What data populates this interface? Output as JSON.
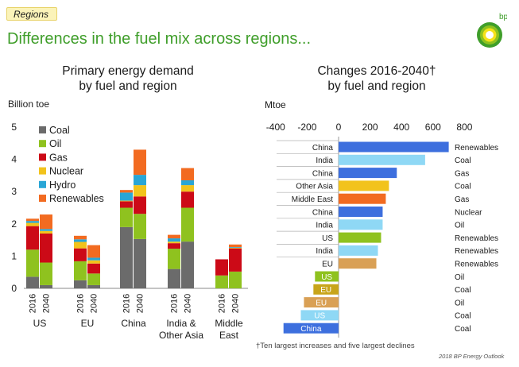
{
  "header": {
    "tag": "Regions",
    "title": "Differences in the fuel mix across regions...",
    "logo_text": "bp"
  },
  "left_chart": {
    "title_line1": "Primary energy demand",
    "title_line2": "by fuel and region",
    "unit": "Billion toe"
  },
  "right_chart": {
    "title_line1": "Changes 2016-2040†",
    "title_line2": "by fuel and region",
    "unit": "Mtoe"
  },
  "footnote": "†Ten largest increases and five largest declines",
  "source": "2018 BP Energy Outlook",
  "chart_data": [
    {
      "type": "bar",
      "stacked": true,
      "title": "Primary energy demand by fuel and region",
      "ylabel": "Billion toe",
      "ylim": [
        0,
        5
      ],
      "yticks": [
        0,
        1,
        2,
        3,
        4,
        5
      ],
      "grid": false,
      "legend": "top-left",
      "groups": [
        "US",
        "EU",
        "China",
        "India & Other Asia",
        "Middle East"
      ],
      "categories": [
        "2016",
        "2040"
      ],
      "series": [
        {
          "name": "Coal",
          "color": "#6b6b6b",
          "values": [
            [
              0.36,
              0.1
            ],
            [
              0.25,
              0.1
            ],
            [
              1.9,
              1.53
            ],
            [
              0.6,
              1.45
            ],
            [
              0,
              0
            ]
          ]
        },
        {
          "name": "Oil",
          "color": "#8fc21f",
          "values": [
            [
              0.84,
              0.7
            ],
            [
              0.59,
              0.36
            ],
            [
              0.6,
              0.78
            ],
            [
              0.63,
              1.05
            ],
            [
              0.4,
              0.52
            ]
          ]
        },
        {
          "name": "Gas",
          "color": "#cc0a17",
          "values": [
            [
              0.73,
              0.9
            ],
            [
              0.4,
              0.31
            ],
            [
              0.2,
              0.54
            ],
            [
              0.17,
              0.5
            ],
            [
              0.5,
              0.72
            ]
          ]
        },
        {
          "name": "Nuclear",
          "color": "#f2c31c",
          "values": [
            [
              0.1,
              0.08
            ],
            [
              0.2,
              0.1
            ],
            [
              0.02,
              0.35
            ],
            [
              0.05,
              0.2
            ],
            [
              0,
              0.02
            ]
          ]
        },
        {
          "name": "Hydro",
          "color": "#2aa6d6",
          "values": [
            [
              0.06,
              0.06
            ],
            [
              0.08,
              0.08
            ],
            [
              0.25,
              0.32
            ],
            [
              0.1,
              0.15
            ],
            [
              0,
              0.02
            ]
          ]
        },
        {
          "name": "Renewables",
          "color": "#f26b21",
          "values": [
            [
              0.07,
              0.45
            ],
            [
              0.11,
              0.39
            ],
            [
              0.08,
              0.78
            ],
            [
              0.11,
              0.38
            ],
            [
              0,
              0.08
            ]
          ]
        }
      ]
    },
    {
      "type": "bar",
      "orientation": "horizontal",
      "title": "Changes 2016-2040 by fuel and region",
      "xlabel": "Mtoe",
      "xlim": [
        -400,
        800
      ],
      "xticks": [
        -400,
        -200,
        0,
        200,
        400,
        600,
        800
      ],
      "categories": [
        "China",
        "India",
        "China",
        "Other Asia",
        "Middle East",
        "China",
        "India",
        "US",
        "India",
        "EU",
        "US",
        "EU",
        "EU",
        "US",
        "China"
      ],
      "fuels": [
        "Renewables",
        "Coal",
        "Gas",
        "Coal",
        "Gas",
        "Nuclear",
        "Oil",
        "Renewables",
        "Renewables",
        "Renewables",
        "Oil",
        "Coal",
        "Oil",
        "Coal",
        "Coal"
      ],
      "values": [
        700,
        550,
        370,
        320,
        300,
        280,
        280,
        270,
        250,
        240,
        -150,
        -160,
        -220,
        -240,
        -350
      ],
      "colors": [
        "#3d6fde",
        "#8fd8f5",
        "#3d6fde",
        "#f2c31c",
        "#f26b21",
        "#3d6fde",
        "#8fd8f5",
        "#8fc21f",
        "#8fd8f5",
        "#d9a055",
        "#8fc21f",
        "#c8a51a",
        "#d9a055",
        "#8fd8f5",
        "#3d6fde"
      ]
    }
  ]
}
